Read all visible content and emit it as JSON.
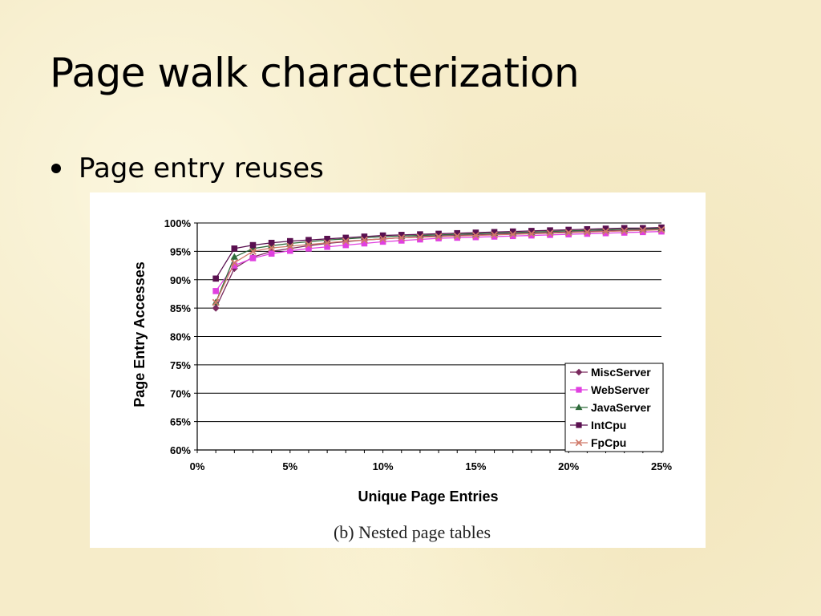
{
  "slide": {
    "title": "Page walk characterization",
    "bullet": "Page entry reuses"
  },
  "chart_data": {
    "type": "line",
    "caption": "(b) Nested page tables",
    "xlabel": "Unique Page Entries",
    "ylabel": "Page Entry Accesses",
    "xlim": [
      0,
      25
    ],
    "ylim": [
      60,
      100
    ],
    "x_ticks": [
      0,
      5,
      10,
      15,
      20,
      25
    ],
    "x_tick_labels": [
      "0%",
      "5%",
      "10%",
      "15%",
      "20%",
      "25%"
    ],
    "y_ticks": [
      60,
      65,
      70,
      75,
      80,
      85,
      90,
      95,
      100
    ],
    "y_tick_labels": [
      "60%",
      "65%",
      "70%",
      "75%",
      "80%",
      "85%",
      "90%",
      "95%",
      "100%"
    ],
    "grid": "horizontal",
    "legend_position": "bottom-right",
    "x": [
      1,
      2,
      3,
      4,
      5,
      6,
      7,
      8,
      9,
      10,
      11,
      12,
      13,
      14,
      15,
      16,
      17,
      18,
      19,
      20,
      21,
      22,
      23,
      24,
      25
    ],
    "series": [
      {
        "name": "MiscServer",
        "color": "#7a2a5e",
        "marker": "diamond",
        "values": [
          85.0,
          92.0,
          94.0,
          95.0,
          95.5,
          96.0,
          96.4,
          96.7,
          97.0,
          97.2,
          97.4,
          97.6,
          97.7,
          97.8,
          97.9,
          98.0,
          98.1,
          98.2,
          98.3,
          98.4,
          98.5,
          98.6,
          98.7,
          98.8,
          98.9
        ]
      },
      {
        "name": "WebServer",
        "color": "#e040e0",
        "marker": "square",
        "values": [
          88.0,
          92.5,
          93.8,
          94.6,
          95.1,
          95.5,
          95.8,
          96.1,
          96.4,
          96.7,
          96.9,
          97.1,
          97.3,
          97.4,
          97.5,
          97.6,
          97.7,
          97.8,
          97.9,
          98.0,
          98.1,
          98.2,
          98.3,
          98.4,
          98.5
        ]
      },
      {
        "name": "JavaServer",
        "color": "#2f6b3a",
        "marker": "triangle",
        "values": [
          86.0,
          94.0,
          95.5,
          96.0,
          96.4,
          96.7,
          97.0,
          97.2,
          97.4,
          97.6,
          97.7,
          97.8,
          97.9,
          98.0,
          98.1,
          98.2,
          98.3,
          98.4,
          98.5,
          98.6,
          98.7,
          98.8,
          98.9,
          99.0,
          99.0
        ]
      },
      {
        "name": "IntCpu",
        "color": "#5a1050",
        "marker": "square",
        "values": [
          90.2,
          95.5,
          96.1,
          96.5,
          96.8,
          97.0,
          97.2,
          97.4,
          97.6,
          97.8,
          97.9,
          98.0,
          98.1,
          98.2,
          98.3,
          98.4,
          98.5,
          98.6,
          98.7,
          98.8,
          98.9,
          99.0,
          99.1,
          99.1,
          99.2
        ]
      },
      {
        "name": "FpCpu",
        "color": "#d07a6a",
        "marker": "x",
        "values": [
          86.0,
          93.0,
          95.0,
          95.6,
          95.9,
          96.2,
          96.5,
          96.8,
          97.0,
          97.2,
          97.4,
          97.5,
          97.6,
          97.7,
          97.8,
          97.9,
          98.0,
          98.1,
          98.2,
          98.3,
          98.4,
          98.5,
          98.6,
          98.7,
          98.8
        ]
      }
    ]
  }
}
